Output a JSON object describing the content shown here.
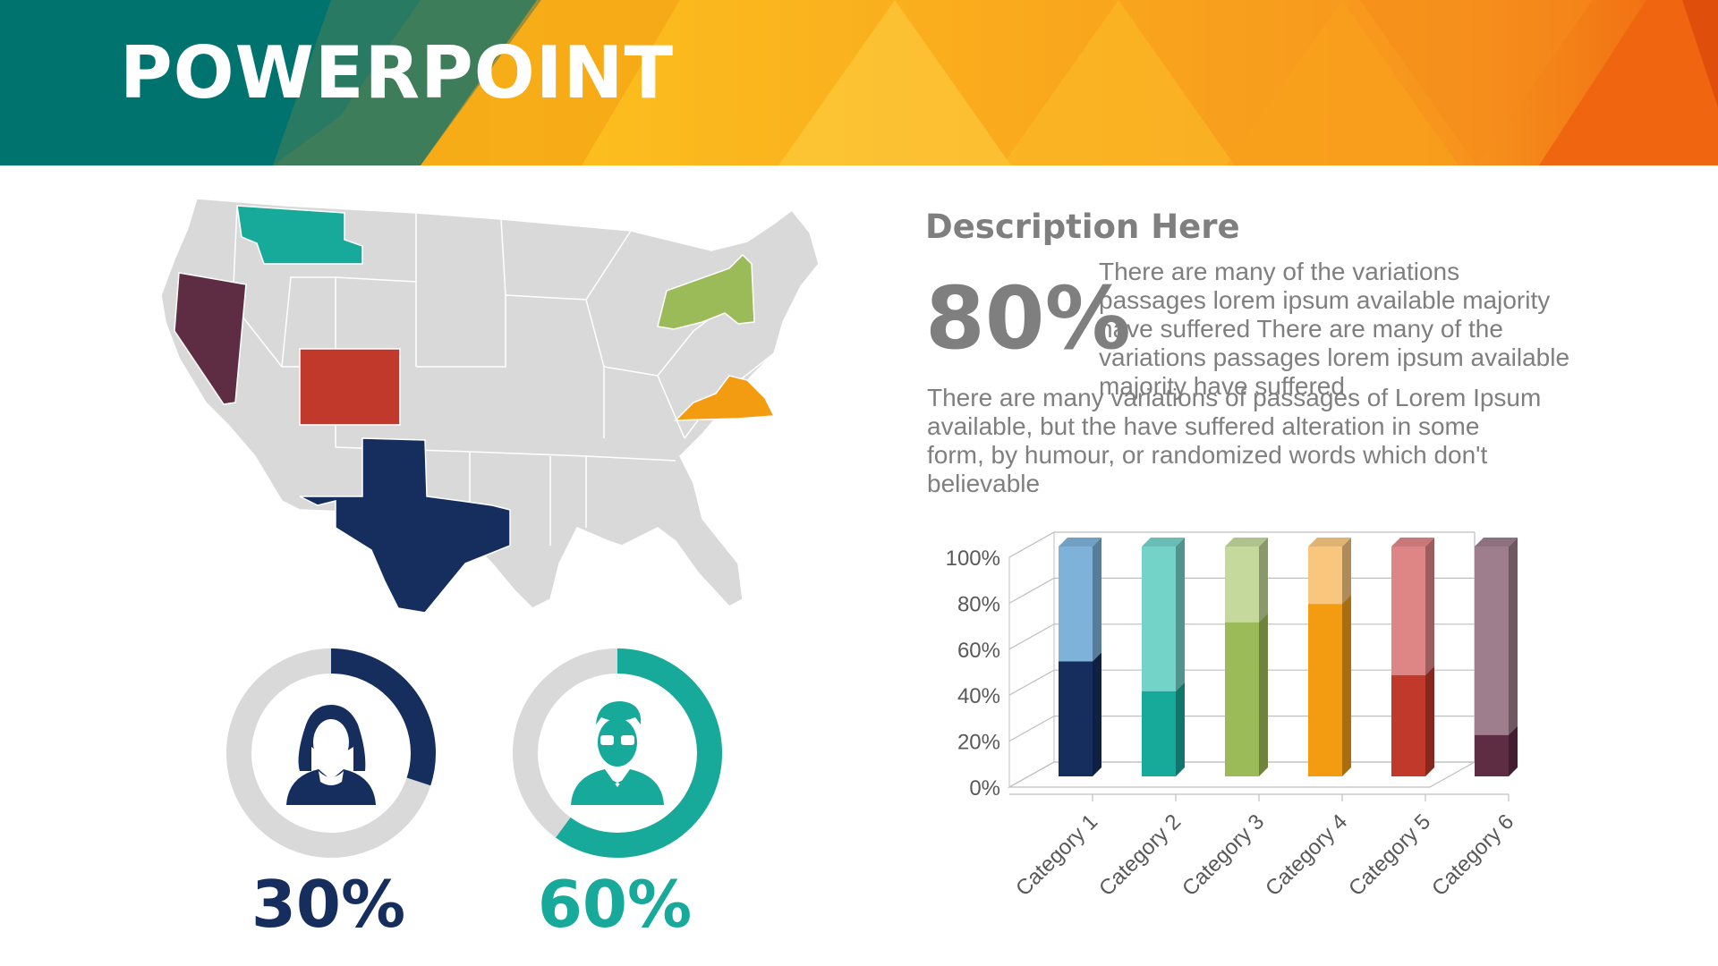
{
  "header": {
    "title": "POWERPOINT",
    "colors": [
      "#00736f",
      "#3e7d5a",
      "#f4a418",
      "#fcc11e",
      "#f7941d",
      "#f26a11",
      "#e84e0f"
    ]
  },
  "map": {
    "base_color": "#d9d9d9",
    "highlighted_states": [
      {
        "state": "Montana",
        "color": "#17a99a"
      },
      {
        "state": "Nevada",
        "color": "#5e2d44"
      },
      {
        "state": "Colorado",
        "color": "#c0392b"
      },
      {
        "state": "Texas",
        "color": "#152e5e"
      },
      {
        "state": "New York",
        "color": "#9bbb59"
      },
      {
        "state": "Virginia",
        "color": "#f39c12"
      }
    ]
  },
  "donuts": [
    {
      "icon": "woman-avatar-icon",
      "percent": 30,
      "label": "30%",
      "color": "#152e5e"
    },
    {
      "icon": "man-avatar-icon",
      "percent": 60,
      "label": "60%",
      "color": "#17a99a"
    }
  ],
  "description": {
    "heading": "Description Here",
    "big_percent": "80%",
    "paragraph1_lines": [
      "There are many of the variations",
      "passages lorem ipsum available majority",
      "have suffered There are many of the",
      "variations passages lorem ipsum available",
      "majority have suffered"
    ],
    "paragraph2_lines": [
      "There are many variations of passages  of Lorem Ipsum",
      "available, but the have suffered alteration in some",
      "form, by humour, or randomized words which  don't",
      "believable"
    ]
  },
  "chart_data": {
    "type": "bar",
    "stacked_percent": true,
    "categories": [
      "Category 1",
      "Category 2",
      "Category 3",
      "Category 4",
      "Category 5",
      "Category 6"
    ],
    "series": [
      {
        "values": [
          50,
          37,
          67,
          75,
          44,
          18
        ],
        "colors": [
          "#152e5e",
          "#17a99a",
          "#9bbb59",
          "#f39c12",
          "#c0392b",
          "#5e2d44"
        ]
      },
      {
        "values": [
          50,
          63,
          33,
          25,
          56,
          82
        ],
        "colors": [
          "#7fb2d9",
          "#74d3c8",
          "#c4d99b",
          "#f8c77d",
          "#de8585",
          "#9e7d8c"
        ]
      }
    ],
    "y_ticks": [
      "0%",
      "20%",
      "40%",
      "60%",
      "80%",
      "100%"
    ],
    "ylim": [
      0,
      100
    ],
    "grid": true
  }
}
